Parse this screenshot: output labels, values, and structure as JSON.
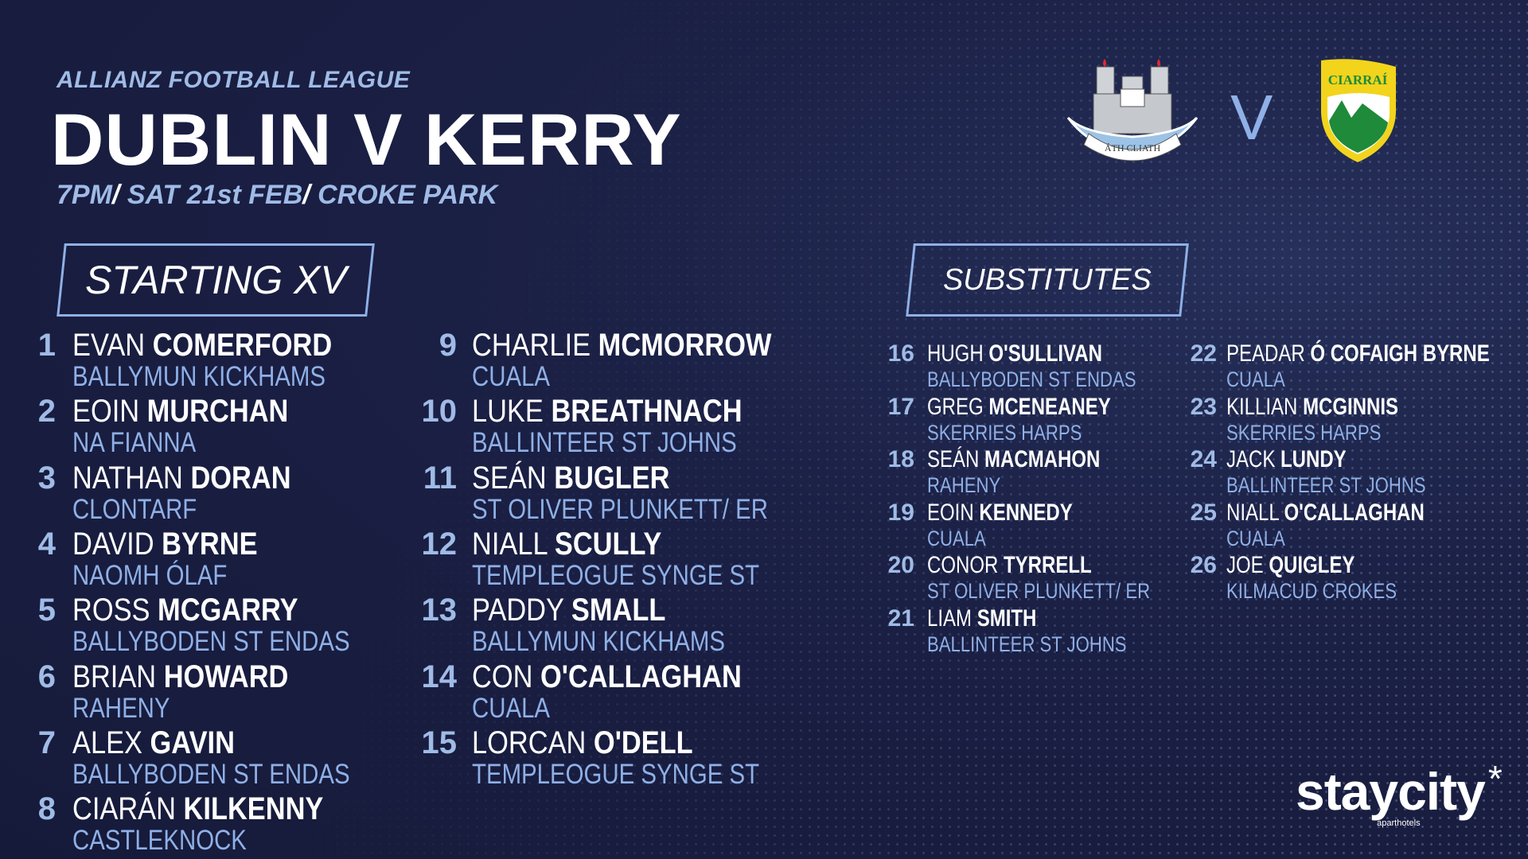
{
  "header": {
    "league": "ALLIANZ FOOTBALL LEAGUE",
    "title": "DUBLIN V KERRY",
    "time": "7PM",
    "date": "SAT 21st FEB",
    "venue": "CROKE PARK",
    "separator": "/"
  },
  "crests": {
    "home_motto": "ÁTH CLIATH",
    "vs": "V",
    "away_name": "CIARRAÍ"
  },
  "sections": {
    "starting": "STARTING XV",
    "subs": "SUBSTITUTES"
  },
  "starting": [
    {
      "num": "1",
      "first": "EVAN",
      "last": "COMERFORD",
      "club": "BALLYMUN KICKHAMS"
    },
    {
      "num": "2",
      "first": "EOIN",
      "last": "MURCHAN",
      "club": "NA FIANNA"
    },
    {
      "num": "3",
      "first": "NATHAN",
      "last": "DORAN",
      "club": "CLONTARF"
    },
    {
      "num": "4",
      "first": "DAVID",
      "last": "BYRNE",
      "club": "NAOMH ÓLAF"
    },
    {
      "num": "5",
      "first": "ROSS",
      "last": "MCGARRY",
      "club": "BALLYBODEN ST ENDAS"
    },
    {
      "num": "6",
      "first": "BRIAN",
      "last": "HOWARD",
      "club": "RAHENY"
    },
    {
      "num": "7",
      "first": "ALEX",
      "last": "GAVIN",
      "club": "BALLYBODEN ST ENDAS"
    },
    {
      "num": "8",
      "first": "CIARÁN",
      "last": "KILKENNY",
      "club": "CASTLEKNOCK"
    },
    {
      "num": "9",
      "first": "CHARLIE",
      "last": "MCMORROW",
      "club": "CUALA"
    },
    {
      "num": "10",
      "first": "LUKE",
      "last": "BREATHNACH",
      "club": "BALLINTEER ST JOHNS"
    },
    {
      "num": "11",
      "first": "SEÁN",
      "last": "BUGLER",
      "club": "ST OLIVER PLUNKETT/ ER"
    },
    {
      "num": "12",
      "first": "NIALL",
      "last": "SCULLY",
      "club": "TEMPLEOGUE SYNGE ST"
    },
    {
      "num": "13",
      "first": "PADDY",
      "last": "SMALL",
      "club": "BALLYMUN KICKHAMS"
    },
    {
      "num": "14",
      "first": "CON",
      "last": "O'CALLAGHAN",
      "club": "CUALA"
    },
    {
      "num": "15",
      "first": "LORCAN",
      "last": "O'DELL",
      "club": "TEMPLEOGUE SYNGE ST"
    }
  ],
  "subs": [
    {
      "num": "16",
      "first": "HUGH",
      "last": "O'SULLIVAN",
      "club": "BALLYBODEN ST ENDAS"
    },
    {
      "num": "17",
      "first": "GREG",
      "last": "MCENEANEY",
      "club": "SKERRIES HARPS"
    },
    {
      "num": "18",
      "first": "SEÁN",
      "last": "MACMAHON",
      "club": "RAHENY"
    },
    {
      "num": "19",
      "first": "EOIN",
      "last": "KENNEDY",
      "club": "CUALA"
    },
    {
      "num": "20",
      "first": "CONOR",
      "last": "TYRRELL",
      "club": "ST OLIVER PLUNKETT/ ER"
    },
    {
      "num": "21",
      "first": "LIAM",
      "last": "SMITH",
      "club": "BALLINTEER ST JOHNS"
    },
    {
      "num": "22",
      "first": "PEADAR",
      "last": "Ó COFAIGH BYRNE",
      "club": "CUALA"
    },
    {
      "num": "23",
      "first": "KILLIAN",
      "last": "MCGINNIS",
      "club": "SKERRIES HARPS"
    },
    {
      "num": "24",
      "first": "JACK",
      "last": "LUNDY",
      "club": "BALLINTEER ST JOHNS"
    },
    {
      "num": "25",
      "first": "NIALL",
      "last": "O'CALLAGHAN",
      "club": "CUALA"
    },
    {
      "num": "26",
      "first": "JOE",
      "last": "QUIGLEY",
      "club": "KILMACUD CROKES"
    }
  ],
  "sponsor": {
    "name": "staycity",
    "tagline": "aparthotels",
    "mark": "*"
  },
  "colors": {
    "background": "#1b2045",
    "accent": "#9fbbe6",
    "text": "#ffffff",
    "kerry_yellow": "#f2d41c",
    "kerry_green": "#1e8a3a"
  }
}
